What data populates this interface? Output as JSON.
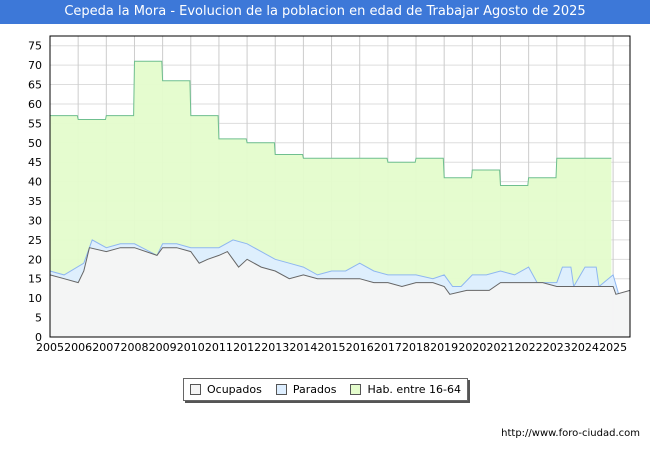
{
  "title": "Cepeda la Mora - Evolucion de la poblacion en edad de Trabajar Agosto de 2025",
  "footer": "http://www.foro-ciudad.com",
  "chart_data": {
    "type": "area",
    "title": "Cepeda la Mora - Evolucion de la poblacion en edad de Trabajar Agosto de 2025",
    "xlim": [
      2005,
      2025.6
    ],
    "ylim": [
      0,
      77.5
    ],
    "x_ticks": [
      2005,
      2006,
      2007,
      2008,
      2009,
      2010,
      2011,
      2012,
      2013,
      2014,
      2015,
      2016,
      2017,
      2018,
      2019,
      2020,
      2021,
      2022,
      2023,
      2024,
      2025
    ],
    "y_ticks": [
      0,
      5,
      10,
      15,
      20,
      25,
      30,
      35,
      40,
      45,
      50,
      55,
      60,
      65,
      70,
      75
    ],
    "grid": true,
    "legend_position": "bottom",
    "series": [
      {
        "name": "Hab. entre 16-64",
        "color": "#e4fccc",
        "line": "#6fbf8f",
        "step": true,
        "x": [
          2005,
          2006,
          2007,
          2008,
          2009,
          2010,
          2011,
          2012,
          2013,
          2014,
          2015,
          2016,
          2017,
          2018,
          2019,
          2020,
          2021,
          2022,
          2023,
          2024
        ],
        "values": [
          57,
          56,
          57,
          71,
          66,
          57,
          51,
          50,
          47,
          46,
          46,
          46,
          45,
          46,
          41,
          43,
          39,
          41,
          46,
          46
        ]
      },
      {
        "name": "Parados",
        "color": "#ddeeff",
        "line": "#8fb7f0",
        "note": "plotted as ocupados + parados",
        "x": [
          2005,
          2005.5,
          2006.2,
          2006.5,
          2007,
          2007.5,
          2008,
          2008.8,
          2009,
          2009.5,
          2010,
          2010.5,
          2011,
          2011.5,
          2012,
          2012.5,
          2013,
          2013.5,
          2014,
          2014.5,
          2015,
          2015.5,
          2016,
          2016.5,
          2017,
          2017.5,
          2018,
          2018.6,
          2019,
          2019.3,
          2019.6,
          2020,
          2020.5,
          2021,
          2021.5,
          2022,
          2022.3,
          2023,
          2023.2,
          2023.5,
          2023.6,
          2024,
          2024.4,
          2024.5,
          2025,
          2025.2,
          2025.6
        ],
        "values": [
          17,
          16,
          19,
          25,
          23,
          24,
          24,
          21,
          24,
          24,
          23,
          23,
          23,
          25,
          24,
          22,
          20,
          19,
          18,
          16,
          17,
          17,
          19,
          17,
          16,
          16,
          16,
          15,
          16,
          13,
          13,
          16,
          16,
          17,
          16,
          18,
          14,
          14,
          18,
          18,
          13,
          18,
          18,
          13,
          16,
          11,
          12
        ]
      },
      {
        "name": "Ocupados",
        "color": "#f4f4f4",
        "line": "#666666",
        "x": [
          2005,
          2005.5,
          2006,
          2006.2,
          2006.4,
          2007,
          2007.5,
          2008,
          2008.8,
          2009,
          2009.5,
          2010,
          2010.3,
          2010.6,
          2011,
          2011.3,
          2011.7,
          2012,
          2012.5,
          2013,
          2013.5,
          2014,
          2014.5,
          2015,
          2016,
          2016.5,
          2017,
          2017.5,
          2018,
          2018.6,
          2019,
          2019.2,
          2019.8,
          2020,
          2020.6,
          2021,
          2022,
          2022.5,
          2023,
          2024,
          2025,
          2025.1,
          2025.6
        ],
        "values": [
          16,
          15,
          14,
          17,
          23,
          22,
          23,
          23,
          21,
          23,
          23,
          22,
          19,
          20,
          21,
          22,
          18,
          20,
          18,
          17,
          15,
          16,
          15,
          15,
          15,
          14,
          14,
          13,
          14,
          14,
          13,
          11,
          12,
          12,
          12,
          14,
          14,
          14,
          13,
          13,
          13,
          11,
          12
        ]
      }
    ]
  }
}
